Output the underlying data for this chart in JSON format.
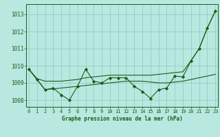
{
  "title": "Graphe pression niveau de la mer (hPa)",
  "background_color": "#b8e8e0",
  "grid_color": "#88ccbb",
  "line_color": "#1a5c1a",
  "marker_color": "#1a5c1a",
  "x_values": [
    0,
    1,
    2,
    3,
    4,
    5,
    6,
    7,
    8,
    9,
    10,
    11,
    12,
    13,
    14,
    15,
    16,
    17,
    18,
    19,
    20,
    21,
    22,
    23
  ],
  "y_main": [
    1009.8,
    1009.2,
    1008.6,
    1008.7,
    1008.3,
    1008.0,
    1008.8,
    1009.8,
    1009.1,
    1009.0,
    1009.3,
    1009.3,
    1009.3,
    1008.8,
    1008.5,
    1008.1,
    1008.6,
    1008.7,
    1009.4,
    1009.35,
    1010.3,
    1011.0,
    1012.2,
    1013.2
  ],
  "y_trend_upper": [
    1009.8,
    1009.25,
    1009.1,
    1009.1,
    1009.1,
    1009.15,
    1009.2,
    1009.3,
    1009.35,
    1009.4,
    1009.45,
    1009.45,
    1009.45,
    1009.45,
    1009.45,
    1009.45,
    1009.5,
    1009.55,
    1009.6,
    1009.65,
    1010.3,
    1011.0,
    1012.2,
    1013.2
  ],
  "y_trend_lower": [
    1009.8,
    1009.2,
    1008.6,
    1008.65,
    1008.7,
    1008.75,
    1008.8,
    1008.85,
    1008.9,
    1008.95,
    1009.0,
    1009.05,
    1009.1,
    1009.1,
    1009.1,
    1009.05,
    1009.0,
    1009.0,
    1009.05,
    1009.1,
    1009.2,
    1009.3,
    1009.4,
    1009.5
  ],
  "xlim": [
    -0.3,
    23.3
  ],
  "ylim": [
    1007.6,
    1013.6
  ],
  "yticks": [
    1008,
    1009,
    1010,
    1011,
    1012,
    1013
  ],
  "xticks": [
    0,
    1,
    2,
    3,
    4,
    5,
    6,
    7,
    8,
    9,
    10,
    11,
    12,
    13,
    14,
    15,
    16,
    17,
    18,
    19,
    20,
    21,
    22,
    23
  ],
  "tick_color": "#1a5c1a",
  "label_fontsize": 5.0,
  "xlabel_fontsize": 5.5
}
